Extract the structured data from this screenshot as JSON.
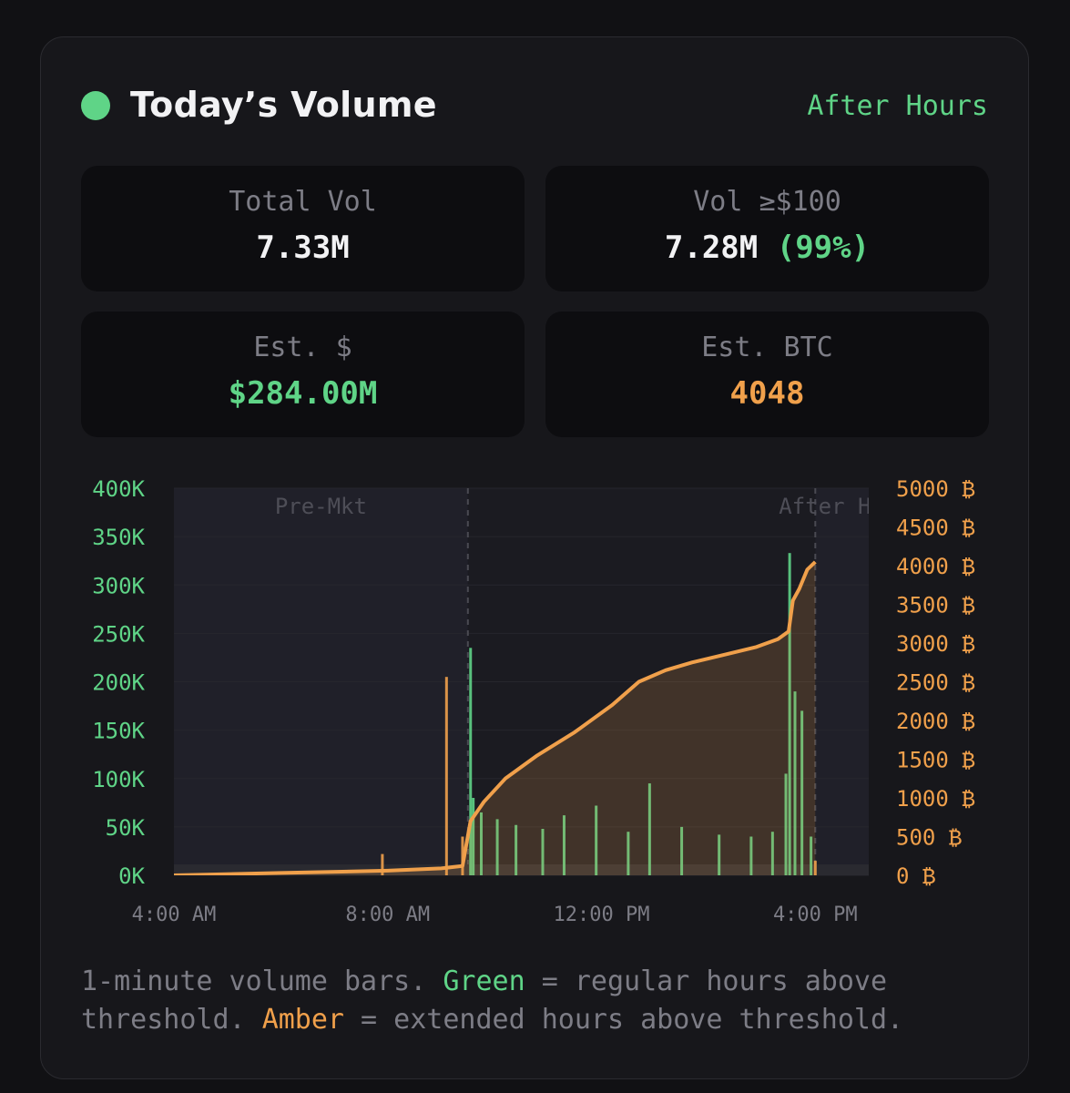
{
  "header": {
    "title": "Today’s Volume",
    "status": "After Hours",
    "status_color": "#5fd487"
  },
  "stats": {
    "total_vol": {
      "label": "Total Vol",
      "value": "7.33M"
    },
    "vol_threshold": {
      "label": "Vol ≥$100",
      "value": "7.28M",
      "pct": "(99%)"
    },
    "est_usd": {
      "label": "Est. $",
      "value": "$284.00M"
    },
    "est_btc": {
      "label": "Est. BTC",
      "value": "4048"
    }
  },
  "chart_data": {
    "type": "bar",
    "session_labels": {
      "premarket": "Pre-Mkt",
      "afterhours": "After Hours"
    },
    "x_ticks": [
      "4:00 AM",
      "8:00 AM",
      "12:00 PM",
      "4:00 PM"
    ],
    "x_tick_hours": [
      4,
      8,
      12,
      16
    ],
    "xlim_hours": [
      4,
      17
    ],
    "session_boundaries_hours": [
      9.5,
      16
    ],
    "y_left": {
      "ticks": [
        "0K",
        "50K",
        "100K",
        "150K",
        "200K",
        "250K",
        "300K",
        "350K",
        "400K"
      ],
      "ylim": [
        0,
        400000
      ]
    },
    "y_right": {
      "ticks": [
        "0 ₿",
        "500 ₿",
        "1000 ₿",
        "1500 ₿",
        "2000 ₿",
        "2500 ₿",
        "3000 ₿",
        "3500 ₿",
        "4000 ₿",
        "4500 ₿",
        "5000 ₿"
      ],
      "ylim": [
        0,
        5000
      ]
    },
    "spikes": [
      {
        "hour": 7.9,
        "volume": 22000,
        "session": "extended"
      },
      {
        "hour": 9.1,
        "volume": 205000,
        "session": "extended"
      },
      {
        "hour": 9.4,
        "volume": 40000,
        "session": "extended"
      },
      {
        "hour": 9.55,
        "volume": 235000,
        "session": "regular"
      },
      {
        "hour": 9.6,
        "volume": 80000,
        "session": "regular"
      },
      {
        "hour": 9.75,
        "volume": 65000,
        "session": "regular"
      },
      {
        "hour": 10.05,
        "volume": 58000,
        "session": "regular"
      },
      {
        "hour": 10.4,
        "volume": 52000,
        "session": "regular"
      },
      {
        "hour": 10.9,
        "volume": 48000,
        "session": "regular"
      },
      {
        "hour": 11.3,
        "volume": 62000,
        "session": "regular"
      },
      {
        "hour": 11.9,
        "volume": 72000,
        "session": "regular"
      },
      {
        "hour": 12.5,
        "volume": 45000,
        "session": "regular"
      },
      {
        "hour": 12.9,
        "volume": 95000,
        "session": "regular"
      },
      {
        "hour": 13.5,
        "volume": 50000,
        "session": "regular"
      },
      {
        "hour": 14.2,
        "volume": 42000,
        "session": "regular"
      },
      {
        "hour": 14.8,
        "volume": 40000,
        "session": "regular"
      },
      {
        "hour": 15.2,
        "volume": 45000,
        "session": "regular"
      },
      {
        "hour": 15.45,
        "volume": 105000,
        "session": "regular"
      },
      {
        "hour": 15.52,
        "volume": 333000,
        "session": "regular"
      },
      {
        "hour": 15.62,
        "volume": 190000,
        "session": "regular"
      },
      {
        "hour": 15.75,
        "volume": 170000,
        "session": "regular"
      },
      {
        "hour": 15.92,
        "volume": 40000,
        "session": "regular"
      },
      {
        "hour": 16.0,
        "volume": 15000,
        "session": "extended"
      }
    ],
    "cumulative_btc": {
      "hours": [
        4,
        6,
        8,
        9.0,
        9.4,
        9.55,
        9.8,
        10.2,
        10.8,
        11.5,
        12.2,
        12.7,
        13.2,
        13.7,
        14.3,
        14.9,
        15.3,
        15.5,
        15.58,
        15.7,
        15.85,
        16.0
      ],
      "values": [
        0,
        30,
        60,
        90,
        120,
        700,
        950,
        1250,
        1550,
        1850,
        2200,
        2500,
        2650,
        2750,
        2850,
        2950,
        3050,
        3150,
        3550,
        3700,
        3950,
        4048
      ]
    },
    "colors": {
      "regular": "#5fd487",
      "extended": "#f0a04b",
      "line": "#f0a04b"
    }
  },
  "caption": {
    "part1": "1-minute volume bars. ",
    "green_word": "Green",
    "part2": " = regular hours above threshold. ",
    "amber_word": "Amber",
    "part3": " = extended hours above threshold."
  }
}
